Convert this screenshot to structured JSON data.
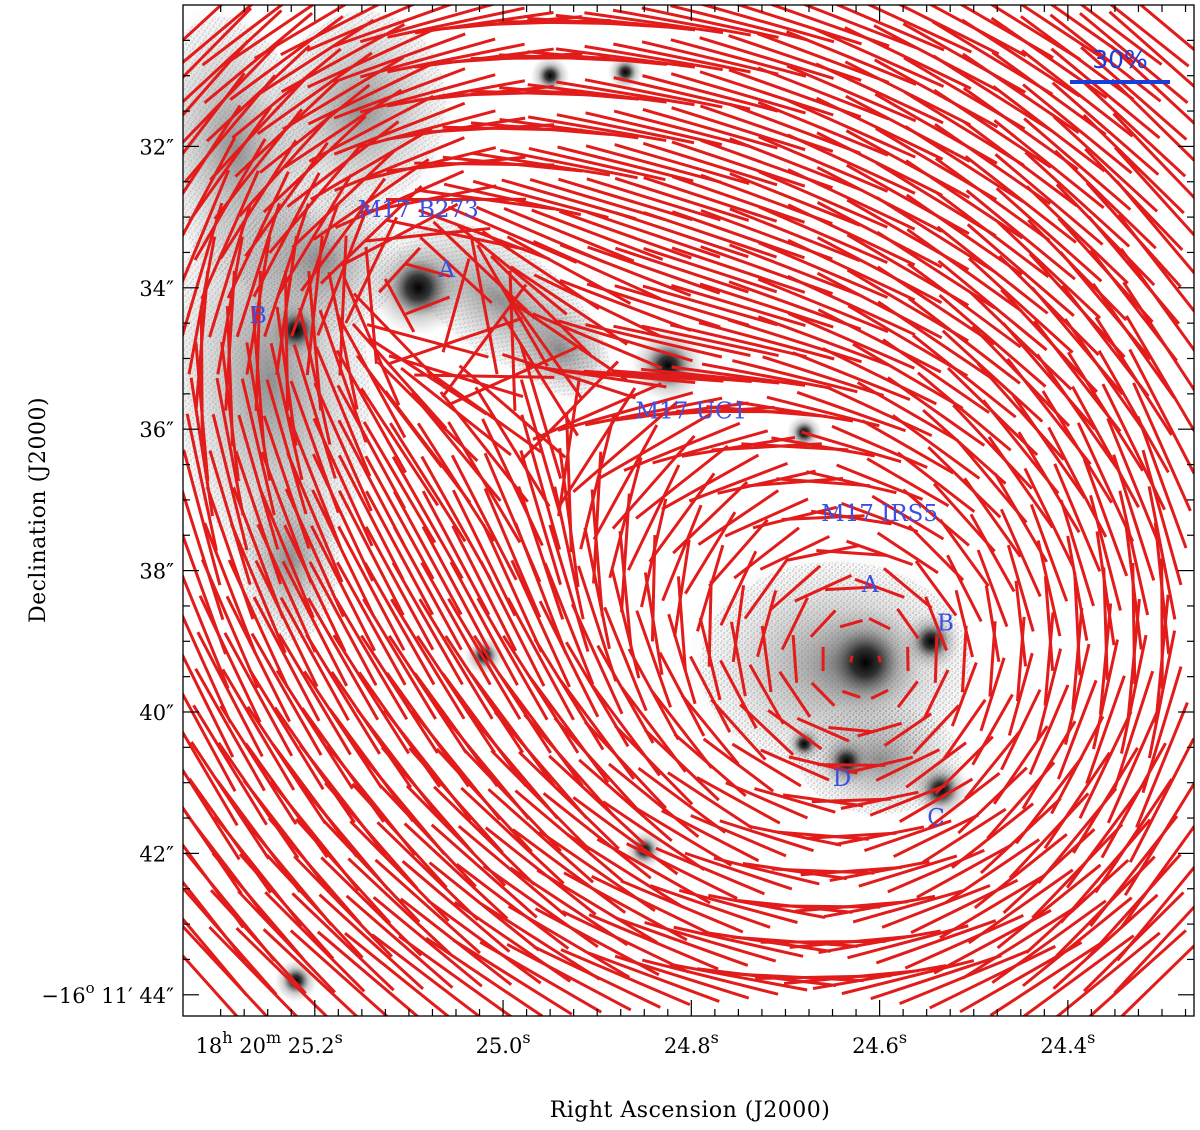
{
  "chart_data": {
    "type": "scatter",
    "title": "",
    "xlabel": "Right Ascension (J2000)",
    "ylabel": "Declination (J2000)",
    "x_ticks": [
      {
        "value": 25.2,
        "prefix": "18",
        "h": "h",
        "mid1": " 20",
        "m": "m",
        "main": " 25.2",
        "sup": "s"
      },
      {
        "value": 25.0,
        "prefix": "",
        "h": "",
        "mid1": "",
        "m": "",
        "main": "25.0",
        "sup": "s"
      },
      {
        "value": 24.8,
        "prefix": "",
        "h": "",
        "mid1": "",
        "m": "",
        "main": "24.8",
        "sup": "s"
      },
      {
        "value": 24.6,
        "prefix": "",
        "h": "",
        "mid1": "",
        "m": "",
        "main": "24.6",
        "sup": "s"
      },
      {
        "value": 24.4,
        "prefix": "",
        "h": "",
        "mid1": "",
        "m": "",
        "main": "24.4",
        "sup": "s"
      }
    ],
    "y_ticks": [
      {
        "value": 32,
        "label": "32″"
      },
      {
        "value": 34,
        "label": "34″"
      },
      {
        "value": 36,
        "label": "36″"
      },
      {
        "value": 38,
        "label": "38″"
      },
      {
        "value": 40,
        "label": "40″"
      },
      {
        "value": 42,
        "label": "42″"
      },
      {
        "value": 44,
        "label": "−16 11′ 44″",
        "pre": "−16",
        "deg": "o",
        "post": " 11′ 44″"
      }
    ],
    "xlim": [
      25.34,
      24.266
    ],
    "ylim": [
      30.0,
      44.3
    ],
    "sources": [
      {
        "name": "M17 B273",
        "label": "M17 B273",
        "x": 25.09,
        "y": 33.0
      },
      {
        "name": "B273 A",
        "label": "A",
        "x": 25.06,
        "y": 33.85
      },
      {
        "name": "B273 B",
        "label": "B",
        "x": 25.26,
        "y": 34.5
      },
      {
        "name": "M17 UC1",
        "label": "M17 UC1",
        "x": 24.8,
        "y": 35.85
      },
      {
        "name": "M17 IRS5",
        "label": "M17 IRS5",
        "x": 24.6,
        "y": 37.3
      },
      {
        "name": "IRS5 A",
        "label": "A",
        "x": 24.61,
        "y": 38.3
      },
      {
        "name": "IRS5 B",
        "label": "B",
        "x": 24.53,
        "y": 38.85
      },
      {
        "name": "IRS5 D",
        "label": "D",
        "x": 24.64,
        "y": 41.05
      },
      {
        "name": "IRS5 C",
        "label": "C",
        "x": 24.54,
        "y": 41.6
      }
    ],
    "stars": [
      {
        "x": 25.09,
        "y": 34.0,
        "brightness": 1.0
      },
      {
        "x": 25.22,
        "y": 34.6,
        "brightness": 0.5
      },
      {
        "x": 24.825,
        "y": 35.1,
        "brightness": 0.7
      },
      {
        "x": 24.615,
        "y": 39.3,
        "brightness": 1.2
      },
      {
        "x": 24.545,
        "y": 39.0,
        "brightness": 0.5
      },
      {
        "x": 24.635,
        "y": 40.7,
        "brightness": 0.4
      },
      {
        "x": 24.535,
        "y": 41.1,
        "brightness": 0.5
      },
      {
        "x": 24.95,
        "y": 31.0,
        "brightness": 0.25
      },
      {
        "x": 24.87,
        "y": 30.95,
        "brightness": 0.2
      },
      {
        "x": 25.02,
        "y": 39.2,
        "brightness": 0.25
      },
      {
        "x": 24.85,
        "y": 41.95,
        "brightness": 0.25
      },
      {
        "x": 25.22,
        "y": 43.8,
        "brightness": 0.3
      },
      {
        "x": 24.68,
        "y": 36.05,
        "brightness": 0.2
      },
      {
        "x": 24.68,
        "y": 40.45,
        "brightness": 0.2
      }
    ],
    "polarization_sources": [
      {
        "x": 24.615,
        "y": 39.3,
        "weight": 1.0
      },
      {
        "x": 25.09,
        "y": 34.0,
        "weight": 0.55
      }
    ],
    "vector_grid": {
      "x_start": 25.32,
      "x_end": 24.29,
      "x_step": 0.03,
      "y_start": 30.25,
      "y_end": 44.0,
      "y_step": 0.5,
      "max_percent": 42
    },
    "scale_bar": {
      "label": "30%",
      "percent": 30
    },
    "colors": {
      "vectors": "#e21b1b",
      "labels": "#3a50e0",
      "scale_bar": "#1a3fd9",
      "image_gray": "#808080"
    },
    "grid": false,
    "legend": "none"
  }
}
